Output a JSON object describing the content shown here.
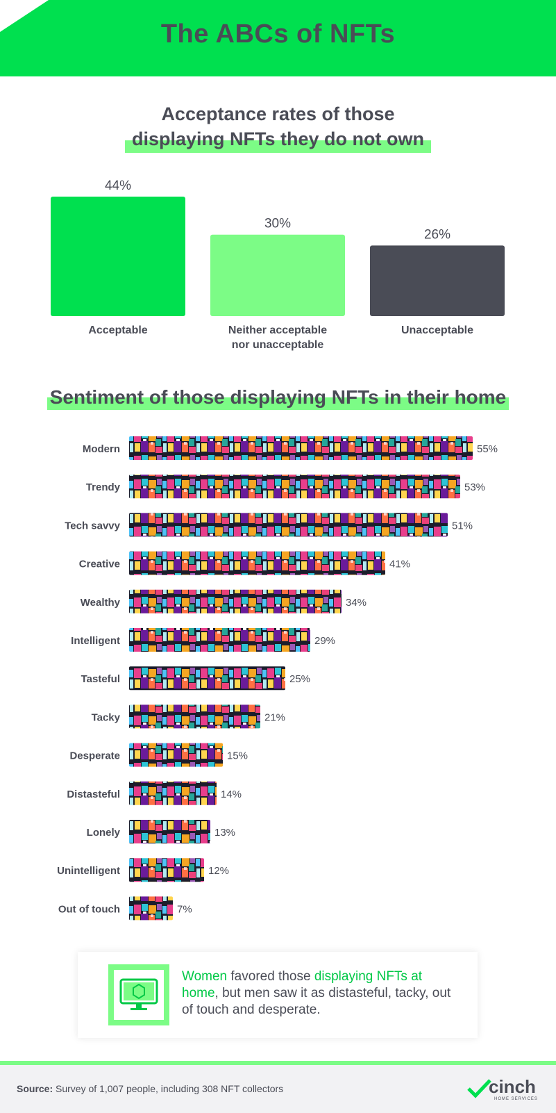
{
  "header": {
    "title": "The ABCs of NFTs"
  },
  "section1": {
    "title_line1": "Acceptance rates of those",
    "title_line2": "displaying NFTs they do not own"
  },
  "section2": {
    "title": "Sentiment of those displaying NFTs in their home"
  },
  "callout": {
    "part1": "Women",
    "part2": " favored those ",
    "part3": "displaying NFTs at home",
    "part4": ", but men saw it as distasteful, tacky, out of touch and desperate."
  },
  "footer": {
    "source_label": "Source:",
    "source_text": " Survey of 1,007 people, including 308 NFT collectors",
    "brand": "cinch",
    "brand_sub": "HOME SERVICES"
  },
  "colors": {
    "green": "#00e04f",
    "light_green": "#7cfc86",
    "dark": "#4a4c56"
  },
  "chart_data": [
    {
      "type": "bar",
      "title": "Acceptance rates of those displaying NFTs they do not own",
      "categories": [
        "Acceptable",
        "Neither acceptable nor unacceptable",
        "Unacceptable"
      ],
      "category_lines": [
        [
          "Acceptable"
        ],
        [
          "Neither acceptable",
          "nor unacceptable"
        ],
        [
          "Unacceptable"
        ]
      ],
      "values": [
        44,
        30,
        26
      ],
      "value_labels": [
        "44%",
        "30%",
        "26%"
      ],
      "bar_colors": [
        "#00e04f",
        "#7cfc86",
        "#4a4c56"
      ],
      "ylim": [
        0,
        44
      ]
    },
    {
      "type": "bar",
      "orientation": "horizontal",
      "title": "Sentiment of those displaying NFTs in their home",
      "categories": [
        "Modern",
        "Trendy",
        "Tech savvy",
        "Creative",
        "Wealthy",
        "Intelligent",
        "Tasteful",
        "Tacky",
        "Desperate",
        "Distasteful",
        "Lonely",
        "Unintelligent",
        "Out of touch"
      ],
      "values": [
        55,
        53,
        51,
        41,
        34,
        29,
        25,
        21,
        15,
        14,
        13,
        12,
        7
      ],
      "value_labels": [
        "55%",
        "53%",
        "51%",
        "41%",
        "34%",
        "29%",
        "25%",
        "21%",
        "15%",
        "14%",
        "13%",
        "12%",
        "7%"
      ],
      "xlim": [
        0,
        55
      ]
    }
  ]
}
